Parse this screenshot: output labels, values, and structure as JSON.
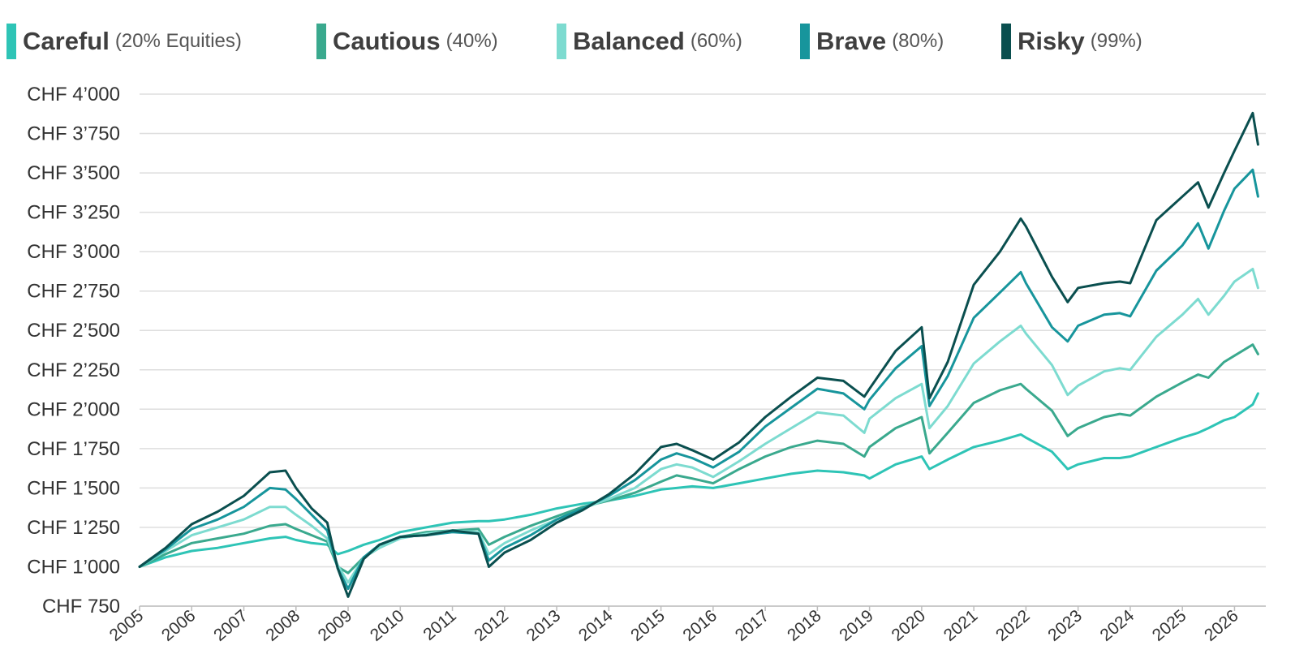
{
  "chart_data": {
    "type": "line",
    "title": "",
    "xlabel": "",
    "ylabel": "",
    "xlim": [
      2005,
      2026.6
    ],
    "ylim": [
      750,
      4000
    ],
    "grid": true,
    "legend_position": "top",
    "y_ticks": [
      750,
      1000,
      1250,
      1500,
      1750,
      2000,
      2250,
      2500,
      2750,
      3000,
      3250,
      3500,
      3750,
      4000
    ],
    "y_tick_labels": [
      "CHF 750",
      "CHF 1’000",
      "CHF 1’250",
      "CHF 1’500",
      "CHF 1’750",
      "CHF 2’000",
      "CHF 2’250",
      "CHF 2’500",
      "CHF 2’750",
      "CHF 3’000",
      "CHF 3’250",
      "CHF 3’500",
      "CHF 3’750",
      "CHF 4’000"
    ],
    "x_ticks": [
      2005,
      2006,
      2007,
      2008,
      2009,
      2010,
      2011,
      2012,
      2013,
      2014,
      2015,
      2016,
      2017,
      2018,
      2019,
      2020,
      2021,
      2022,
      2023,
      2024,
      2025,
      2026
    ],
    "x_tick_labels": [
      "2005",
      "2006",
      "2007",
      "2008",
      "2009",
      "2010",
      "2011",
      "2012",
      "2013",
      "2014",
      "2015",
      "2016",
      "2017",
      "2018",
      "2019",
      "2020",
      "2021",
      "2022",
      "2023",
      "2024",
      "2025",
      "2026"
    ],
    "x": [
      2005.0,
      2005.5,
      2006.0,
      2006.5,
      2007.0,
      2007.5,
      2007.8,
      2008.0,
      2008.3,
      2008.6,
      2008.8,
      2009.0,
      2009.3,
      2009.6,
      2010.0,
      2010.5,
      2011.0,
      2011.5,
      2011.7,
      2012.0,
      2012.5,
      2013.0,
      2013.5,
      2014.0,
      2014.5,
      2015.0,
      2015.3,
      2015.6,
      2016.0,
      2016.5,
      2017.0,
      2017.5,
      2018.0,
      2018.5,
      2018.9,
      2019.0,
      2019.5,
      2020.0,
      2020.15,
      2020.5,
      2021.0,
      2021.5,
      2021.9,
      2022.0,
      2022.5,
      2022.8,
      2023.0,
      2023.5,
      2023.8,
      2024.0,
      2024.5,
      2025.0,
      2025.3,
      2025.5,
      2025.8,
      2026.0,
      2026.35,
      2026.45
    ],
    "series": [
      {
        "name": "Careful",
        "detail": "(20% Equities)",
        "color": "#2ec4b6",
        "values": [
          1000,
          1060,
          1100,
          1120,
          1150,
          1180,
          1190,
          1170,
          1150,
          1140,
          1080,
          1100,
          1140,
          1170,
          1220,
          1250,
          1280,
          1290,
          1290,
          1300,
          1330,
          1370,
          1400,
          1420,
          1450,
          1490,
          1500,
          1510,
          1500,
          1530,
          1560,
          1590,
          1610,
          1600,
          1580,
          1560,
          1650,
          1700,
          1620,
          1680,
          1760,
          1800,
          1840,
          1820,
          1730,
          1620,
          1650,
          1690,
          1690,
          1700,
          1760,
          1820,
          1850,
          1880,
          1930,
          1950,
          2030,
          2100
        ]
      },
      {
        "name": "Cautious",
        "detail": "(40%)",
        "color": "#3aa98e",
        "values": [
          1000,
          1080,
          1150,
          1180,
          1210,
          1260,
          1270,
          1240,
          1200,
          1160,
          1000,
          960,
          1060,
          1120,
          1190,
          1220,
          1230,
          1240,
          1140,
          1190,
          1260,
          1320,
          1380,
          1420,
          1470,
          1540,
          1580,
          1560,
          1530,
          1620,
          1700,
          1760,
          1800,
          1780,
          1700,
          1760,
          1880,
          1950,
          1720,
          1850,
          2040,
          2120,
          2160,
          2130,
          1990,
          1830,
          1880,
          1950,
          1970,
          1960,
          2080,
          2170,
          2220,
          2200,
          2300,
          2340,
          2410,
          2350
        ]
      },
      {
        "name": "Balanced",
        "detail": "(60%)",
        "color": "#7ddbd0",
        "values": [
          1000,
          1100,
          1200,
          1250,
          1300,
          1380,
          1380,
          1330,
          1260,
          1180,
          1010,
          900,
          1060,
          1120,
          1180,
          1210,
          1230,
          1220,
          1080,
          1150,
          1230,
          1300,
          1370,
          1430,
          1500,
          1620,
          1650,
          1630,
          1570,
          1670,
          1780,
          1880,
          1980,
          1960,
          1850,
          1940,
          2070,
          2160,
          1880,
          2020,
          2290,
          2430,
          2530,
          2480,
          2280,
          2090,
          2150,
          2240,
          2260,
          2250,
          2460,
          2600,
          2700,
          2600,
          2720,
          2810,
          2890,
          2770
        ]
      },
      {
        "name": "Brave",
        "detail": "(80%)",
        "color": "#17959c",
        "values": [
          1000,
          1110,
          1240,
          1300,
          1380,
          1500,
          1490,
          1430,
          1330,
          1230,
          990,
          860,
          1060,
          1140,
          1190,
          1200,
          1220,
          1210,
          1040,
          1120,
          1200,
          1300,
          1370,
          1450,
          1550,
          1680,
          1720,
          1690,
          1630,
          1730,
          1890,
          2010,
          2130,
          2100,
          2000,
          2060,
          2260,
          2400,
          2020,
          2210,
          2580,
          2740,
          2870,
          2800,
          2520,
          2430,
          2530,
          2600,
          2610,
          2590,
          2880,
          3040,
          3180,
          3020,
          3260,
          3400,
          3520,
          3350
        ]
      },
      {
        "name": "Risky",
        "detail": "(99%)",
        "color": "#0a4f4f",
        "values": [
          1000,
          1120,
          1270,
          1350,
          1450,
          1600,
          1610,
          1500,
          1370,
          1280,
          990,
          810,
          1050,
          1140,
          1190,
          1200,
          1230,
          1210,
          1000,
          1090,
          1170,
          1280,
          1360,
          1460,
          1590,
          1760,
          1780,
          1740,
          1680,
          1790,
          1950,
          2080,
          2200,
          2180,
          2080,
          2130,
          2370,
          2520,
          2070,
          2300,
          2790,
          3000,
          3210,
          3160,
          2840,
          2680,
          2770,
          2800,
          2810,
          2800,
          3200,
          3350,
          3440,
          3280,
          3500,
          3640,
          3880,
          3680
        ]
      }
    ]
  }
}
